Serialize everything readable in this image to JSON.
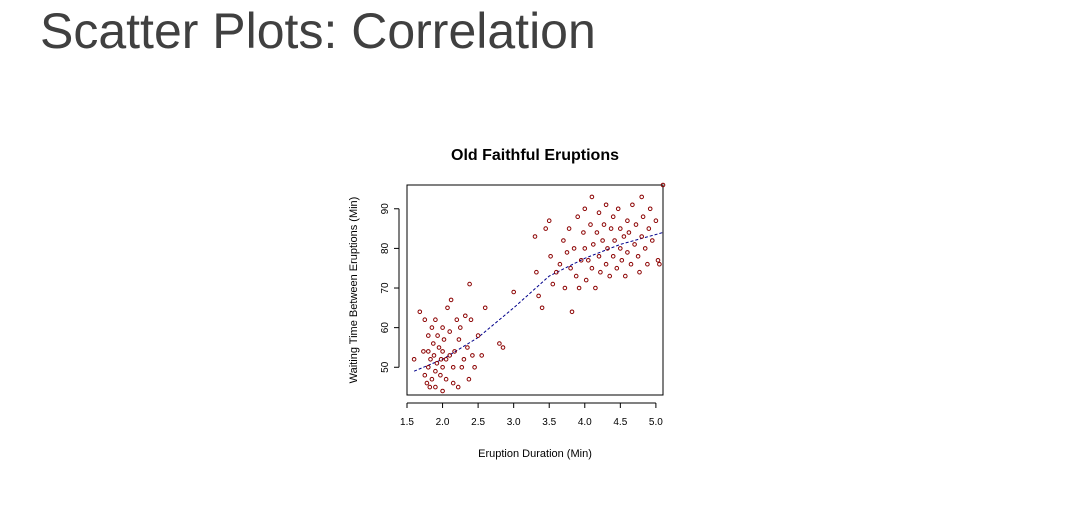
{
  "slide": {
    "title": "Scatter Plots: Correlation"
  },
  "colors": {
    "point": "#8b0000",
    "fit_line": "#00008b",
    "text": "#404040"
  },
  "chart_data": {
    "type": "scatter",
    "title": "Old Faithful Eruptions",
    "xlabel": "Eruption Duration (Min)",
    "ylabel": "Waiting Time Between Eruptions (Min)",
    "xlim": [
      1.5,
      5.1
    ],
    "ylim": [
      43,
      96
    ],
    "xticks": [
      "1.5",
      "2.0",
      "2.5",
      "3.0",
      "3.5",
      "4.0",
      "4.5",
      "5.0"
    ],
    "yticks": [
      "50",
      "60",
      "70",
      "80",
      "90"
    ],
    "grid": false,
    "fit_line": {
      "style": "dashed",
      "points": [
        [
          1.6,
          49
        ],
        [
          2.0,
          52
        ],
        [
          2.5,
          57.5
        ],
        [
          3.0,
          65
        ],
        [
          3.5,
          73
        ],
        [
          4.0,
          77.5
        ],
        [
          4.5,
          81
        ],
        [
          5.1,
          84
        ]
      ]
    },
    "points": [
      [
        1.6,
        52
      ],
      [
        1.68,
        64
      ],
      [
        1.73,
        54
      ],
      [
        1.75,
        48
      ],
      [
        1.75,
        62
      ],
      [
        1.78,
        46
      ],
      [
        1.8,
        50
      ],
      [
        1.8,
        54
      ],
      [
        1.8,
        58
      ],
      [
        1.82,
        45
      ],
      [
        1.83,
        52
      ],
      [
        1.85,
        60
      ],
      [
        1.85,
        47
      ],
      [
        1.87,
        56
      ],
      [
        1.88,
        53
      ],
      [
        1.9,
        49
      ],
      [
        1.9,
        45
      ],
      [
        1.9,
        62
      ],
      [
        1.92,
        51
      ],
      [
        1.93,
        58
      ],
      [
        1.95,
        55
      ],
      [
        1.97,
        48
      ],
      [
        1.98,
        52
      ],
      [
        2.0,
        44
      ],
      [
        2.0,
        50
      ],
      [
        2.0,
        54
      ],
      [
        2.0,
        60
      ],
      [
        2.02,
        57
      ],
      [
        2.05,
        52
      ],
      [
        2.05,
        47
      ],
      [
        2.07,
        65
      ],
      [
        2.1,
        53
      ],
      [
        2.1,
        59
      ],
      [
        2.12,
        67
      ],
      [
        2.15,
        50
      ],
      [
        2.15,
        46
      ],
      [
        2.17,
        54
      ],
      [
        2.2,
        62
      ],
      [
        2.22,
        45
      ],
      [
        2.23,
        57
      ],
      [
        2.25,
        60
      ],
      [
        2.27,
        50
      ],
      [
        2.3,
        52
      ],
      [
        2.32,
        63
      ],
      [
        2.35,
        55
      ],
      [
        2.37,
        47
      ],
      [
        2.38,
        71
      ],
      [
        2.4,
        62
      ],
      [
        2.42,
        53
      ],
      [
        2.45,
        50
      ],
      [
        2.5,
        58
      ],
      [
        2.55,
        53
      ],
      [
        2.6,
        65
      ],
      [
        2.8,
        56
      ],
      [
        2.85,
        55
      ],
      [
        3.0,
        69
      ],
      [
        3.3,
        83
      ],
      [
        3.32,
        74
      ],
      [
        3.35,
        68
      ],
      [
        3.4,
        65
      ],
      [
        3.45,
        85
      ],
      [
        3.5,
        87
      ],
      [
        3.52,
        78
      ],
      [
        3.55,
        71
      ],
      [
        3.6,
        74
      ],
      [
        3.65,
        76
      ],
      [
        3.7,
        82
      ],
      [
        3.72,
        70
      ],
      [
        3.75,
        79
      ],
      [
        3.78,
        85
      ],
      [
        3.8,
        75
      ],
      [
        3.82,
        64
      ],
      [
        3.85,
        80
      ],
      [
        3.88,
        73
      ],
      [
        3.9,
        88
      ],
      [
        3.92,
        70
      ],
      [
        3.95,
        77
      ],
      [
        3.98,
        84
      ],
      [
        4.0,
        80
      ],
      [
        4.0,
        90
      ],
      [
        4.02,
        72
      ],
      [
        4.05,
        77
      ],
      [
        4.08,
        86
      ],
      [
        4.1,
        93
      ],
      [
        4.1,
        75
      ],
      [
        4.12,
        81
      ],
      [
        4.15,
        70
      ],
      [
        4.17,
        84
      ],
      [
        4.2,
        89
      ],
      [
        4.2,
        78
      ],
      [
        4.22,
        74
      ],
      [
        4.25,
        82
      ],
      [
        4.27,
        86
      ],
      [
        4.3,
        76
      ],
      [
        4.3,
        91
      ],
      [
        4.32,
        80
      ],
      [
        4.35,
        73
      ],
      [
        4.37,
        85
      ],
      [
        4.4,
        78
      ],
      [
        4.4,
        88
      ],
      [
        4.42,
        82
      ],
      [
        4.45,
        75
      ],
      [
        4.47,
        90
      ],
      [
        4.5,
        80
      ],
      [
        4.5,
        85
      ],
      [
        4.52,
        77
      ],
      [
        4.55,
        83
      ],
      [
        4.57,
        73
      ],
      [
        4.6,
        87
      ],
      [
        4.6,
        79
      ],
      [
        4.62,
        84
      ],
      [
        4.65,
        76
      ],
      [
        4.67,
        91
      ],
      [
        4.7,
        81
      ],
      [
        4.72,
        86
      ],
      [
        4.75,
        78
      ],
      [
        4.77,
        74
      ],
      [
        4.8,
        83
      ],
      [
        4.8,
        93
      ],
      [
        4.82,
        88
      ],
      [
        4.85,
        80
      ],
      [
        4.88,
        76
      ],
      [
        4.9,
        85
      ],
      [
        4.92,
        90
      ],
      [
        4.95,
        82
      ],
      [
        5.0,
        87
      ],
      [
        5.03,
        77
      ],
      [
        5.05,
        76
      ],
      [
        5.1,
        96
      ]
    ]
  }
}
